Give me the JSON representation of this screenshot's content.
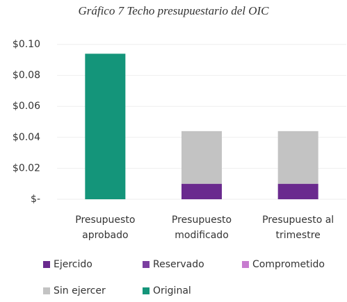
{
  "chart_data": {
    "type": "stacked_bar",
    "title": "Gráfico 7  Techo presupuestario del OIC",
    "categories": [
      "Presupuesto aprobado",
      "Presupuesto modificado",
      "Presupuesto al trimestre"
    ],
    "series": [
      {
        "name": "Ejercido",
        "color": "#6a2a8e",
        "values": [
          0,
          0.01,
          0.01
        ]
      },
      {
        "name": "Reservado",
        "color": "#7b3fa0",
        "values": [
          0,
          0,
          0
        ]
      },
      {
        "name": "Comprometido",
        "color": "#c77ccf",
        "values": [
          0,
          0,
          0
        ]
      },
      {
        "name": "Sin ejercer",
        "color": "#c3c3c3",
        "values": [
          0,
          0.034,
          0.034
        ]
      },
      {
        "name": "Original",
        "color": "#14957a",
        "values": [
          0.094,
          0,
          0
        ]
      }
    ],
    "ylim": [
      0,
      0.1
    ],
    "yticks": [
      {
        "value": 0,
        "label": "$-"
      },
      {
        "value": 0.02,
        "label": "$0.02"
      },
      {
        "value": 0.04,
        "label": "$0.04"
      },
      {
        "value": 0.06,
        "label": "$0.06"
      },
      {
        "value": 0.08,
        "label": "$0.08"
      },
      {
        "value": 0.1,
        "label": "$0.10"
      }
    ],
    "grid": true,
    "legend": "bottom"
  }
}
